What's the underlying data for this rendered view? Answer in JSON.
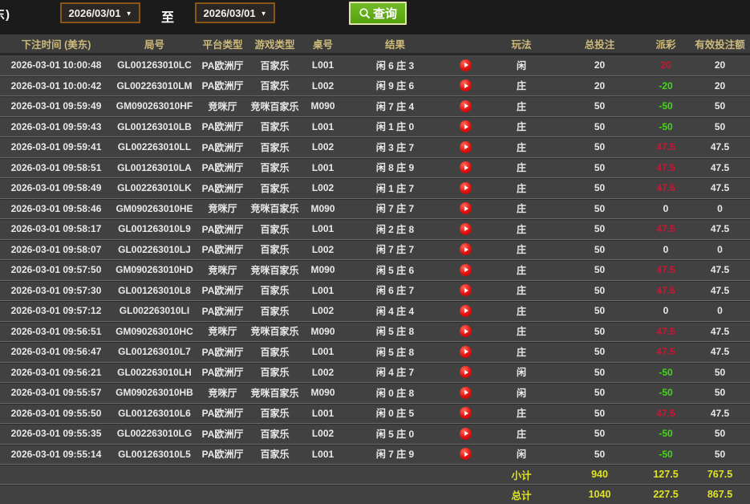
{
  "toolbar": {
    "partial_left_text": "东)",
    "date_from": "2026/03/01",
    "to_label": "至",
    "date_to": "2026/03/01",
    "query_label": "查询",
    "icons": {
      "query": "search-icon",
      "date_caret": "caret-down-icon",
      "replay": "play-circle-icon"
    }
  },
  "table": {
    "headers": {
      "time": "下注时间 (美东)",
      "round": "局号",
      "platform": "平台类型",
      "game": "游戏类型",
      "table_no": "桌号",
      "result": "结果",
      "play_type": "玩法",
      "total_bet": "总投注",
      "payout": "派彩",
      "valid_bet": "有效投注额"
    },
    "rows": [
      {
        "time": "2026-03-01 10:00:48",
        "round": "GL001263010LC",
        "platform": "PA欧洲厅",
        "game": "百家乐",
        "table_no": "L001",
        "result": "闲 6 庄 3",
        "play_type": "闲",
        "total_bet": "20",
        "payout": "20",
        "payout_color": "win",
        "valid_bet": "20"
      },
      {
        "time": "2026-03-01 10:00:42",
        "round": "GL002263010LM",
        "platform": "PA欧洲厅",
        "game": "百家乐",
        "table_no": "L002",
        "result": "闲 9 庄 6",
        "play_type": "庄",
        "total_bet": "20",
        "payout": "-20",
        "payout_color": "loss",
        "valid_bet": "20"
      },
      {
        "time": "2026-03-01 09:59:49",
        "round": "GM090263010HF",
        "platform": "竞咪厅",
        "game": "竞咪百家乐",
        "table_no": "M090",
        "result": "闲 7 庄 4",
        "play_type": "庄",
        "total_bet": "50",
        "payout": "-50",
        "payout_color": "loss",
        "valid_bet": "50"
      },
      {
        "time": "2026-03-01 09:59:43",
        "round": "GL001263010LB",
        "platform": "PA欧洲厅",
        "game": "百家乐",
        "table_no": "L001",
        "result": "闲 1 庄 0",
        "play_type": "庄",
        "total_bet": "50",
        "payout": "-50",
        "payout_color": "loss",
        "valid_bet": "50"
      },
      {
        "time": "2026-03-01 09:59:41",
        "round": "GL002263010LL",
        "platform": "PA欧洲厅",
        "game": "百家乐",
        "table_no": "L002",
        "result": "闲 3 庄 7",
        "play_type": "庄",
        "total_bet": "50",
        "payout": "47.5",
        "payout_color": "win",
        "valid_bet": "47.5"
      },
      {
        "time": "2026-03-01 09:58:51",
        "round": "GL001263010LA",
        "platform": "PA欧洲厅",
        "game": "百家乐",
        "table_no": "L001",
        "result": "闲 8 庄 9",
        "play_type": "庄",
        "total_bet": "50",
        "payout": "47.5",
        "payout_color": "win",
        "valid_bet": "47.5"
      },
      {
        "time": "2026-03-01 09:58:49",
        "round": "GL002263010LK",
        "platform": "PA欧洲厅",
        "game": "百家乐",
        "table_no": "L002",
        "result": "闲 1 庄 7",
        "play_type": "庄",
        "total_bet": "50",
        "payout": "47.5",
        "payout_color": "win",
        "valid_bet": "47.5"
      },
      {
        "time": "2026-03-01 09:58:46",
        "round": "GM090263010HE",
        "platform": "竞咪厅",
        "game": "竞咪百家乐",
        "table_no": "M090",
        "result": "闲 7 庄 7",
        "play_type": "庄",
        "total_bet": "50",
        "payout": "0",
        "payout_color": "zero",
        "valid_bet": "0"
      },
      {
        "time": "2026-03-01 09:58:17",
        "round": "GL001263010L9",
        "platform": "PA欧洲厅",
        "game": "百家乐",
        "table_no": "L001",
        "result": "闲 2 庄 8",
        "play_type": "庄",
        "total_bet": "50",
        "payout": "47.5",
        "payout_color": "win",
        "valid_bet": "47.5"
      },
      {
        "time": "2026-03-01 09:58:07",
        "round": "GL002263010LJ",
        "platform": "PA欧洲厅",
        "game": "百家乐",
        "table_no": "L002",
        "result": "闲 7 庄 7",
        "play_type": "庄",
        "total_bet": "50",
        "payout": "0",
        "payout_color": "zero",
        "valid_bet": "0"
      },
      {
        "time": "2026-03-01 09:57:50",
        "round": "GM090263010HD",
        "platform": "竞咪厅",
        "game": "竞咪百家乐",
        "table_no": "M090",
        "result": "闲 5 庄 6",
        "play_type": "庄",
        "total_bet": "50",
        "payout": "47.5",
        "payout_color": "win",
        "valid_bet": "47.5"
      },
      {
        "time": "2026-03-01 09:57:30",
        "round": "GL001263010L8",
        "platform": "PA欧洲厅",
        "game": "百家乐",
        "table_no": "L001",
        "result": "闲 6 庄 7",
        "play_type": "庄",
        "total_bet": "50",
        "payout": "47.5",
        "payout_color": "win",
        "valid_bet": "47.5"
      },
      {
        "time": "2026-03-01 09:57:12",
        "round": "GL002263010LI",
        "platform": "PA欧洲厅",
        "game": "百家乐",
        "table_no": "L002",
        "result": "闲 4 庄 4",
        "play_type": "庄",
        "total_bet": "50",
        "payout": "0",
        "payout_color": "zero",
        "valid_bet": "0"
      },
      {
        "time": "2026-03-01 09:56:51",
        "round": "GM090263010HC",
        "platform": "竞咪厅",
        "game": "竞咪百家乐",
        "table_no": "M090",
        "result": "闲 5 庄 8",
        "play_type": "庄",
        "total_bet": "50",
        "payout": "47.5",
        "payout_color": "win",
        "valid_bet": "47.5"
      },
      {
        "time": "2026-03-01 09:56:47",
        "round": "GL001263010L7",
        "platform": "PA欧洲厅",
        "game": "百家乐",
        "table_no": "L001",
        "result": "闲 5 庄 8",
        "play_type": "庄",
        "total_bet": "50",
        "payout": "47.5",
        "payout_color": "win",
        "valid_bet": "47.5"
      },
      {
        "time": "2026-03-01 09:56:21",
        "round": "GL002263010LH",
        "platform": "PA欧洲厅",
        "game": "百家乐",
        "table_no": "L002",
        "result": "闲 4 庄 7",
        "play_type": "闲",
        "total_bet": "50",
        "payout": "-50",
        "payout_color": "loss",
        "valid_bet": "50"
      },
      {
        "time": "2026-03-01 09:55:57",
        "round": "GM090263010HB",
        "platform": "竞咪厅",
        "game": "竞咪百家乐",
        "table_no": "M090",
        "result": "闲 0 庄 8",
        "play_type": "闲",
        "total_bet": "50",
        "payout": "-50",
        "payout_color": "loss",
        "valid_bet": "50"
      },
      {
        "time": "2026-03-01 09:55:50",
        "round": "GL001263010L6",
        "platform": "PA欧洲厅",
        "game": "百家乐",
        "table_no": "L001",
        "result": "闲 0 庄 5",
        "play_type": "庄",
        "total_bet": "50",
        "payout": "47.5",
        "payout_color": "win",
        "valid_bet": "47.5"
      },
      {
        "time": "2026-03-01 09:55:35",
        "round": "GL002263010LG",
        "platform": "PA欧洲厅",
        "game": "百家乐",
        "table_no": "L002",
        "result": "闲 5 庄 0",
        "play_type": "庄",
        "total_bet": "50",
        "payout": "-50",
        "payout_color": "loss",
        "valid_bet": "50"
      },
      {
        "time": "2026-03-01 09:55:14",
        "round": "GL001263010L5",
        "platform": "PA欧洲厅",
        "game": "百家乐",
        "table_no": "L001",
        "result": "闲 7 庄 9",
        "play_type": "闲",
        "total_bet": "50",
        "payout": "-50",
        "payout_color": "loss",
        "valid_bet": "50"
      }
    ],
    "subtotal": {
      "label": "小计",
      "total_bet": "940",
      "payout": "127.5",
      "valid_bet": "767.5"
    },
    "total": {
      "label": "总计",
      "total_bet": "1040",
      "payout": "227.5",
      "valid_bet": "867.5"
    }
  },
  "colors": {
    "payout_win_red": "#cd1433",
    "payout_loss_green": "#46d41e",
    "totals_yellow": "#dfe326",
    "header_gold": "#cdb97b",
    "query_button_green": "#5da414",
    "date_border_brown": "#8a5717",
    "replay_red": "#e01111"
  }
}
